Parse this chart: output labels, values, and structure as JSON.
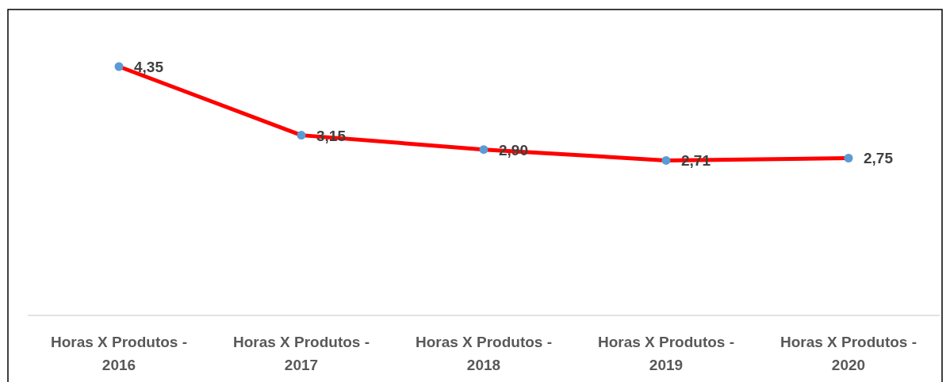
{
  "chart_data": {
    "type": "line",
    "categories": [
      "Horas X Produtos - 2016",
      "Horas X Produtos - 2017",
      "Horas X Produtos - 2018",
      "Horas X Produtos - 2019",
      "Horas X Produtos - 2020"
    ],
    "series": [
      {
        "color": "#ff0000",
        "values": [
          4.35,
          3.15,
          2.9,
          2.71,
          2.75
        ],
        "value_labels": [
          "4,35",
          "3,15",
          "2,90",
          "2,71",
          "2,75"
        ]
      }
    ],
    "tick_labels": "x",
    "marker": "circle",
    "line_style": "solid"
  }
}
